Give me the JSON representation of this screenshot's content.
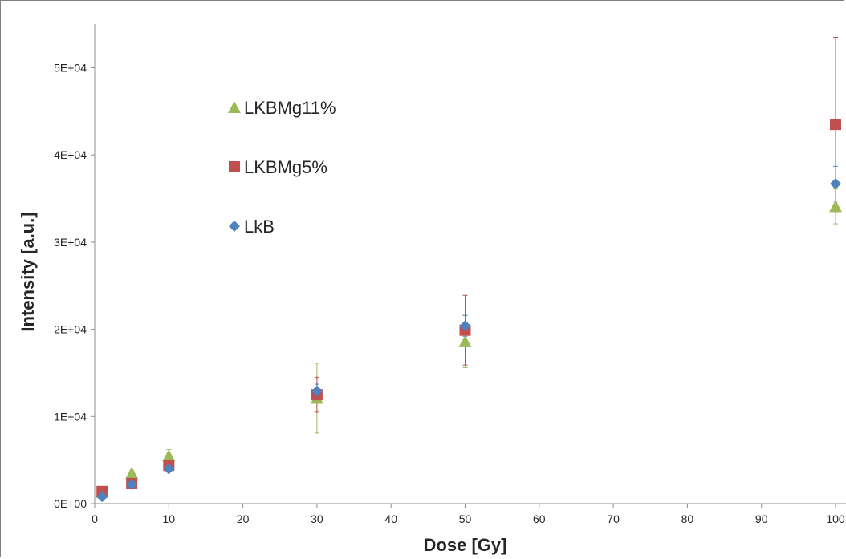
{
  "chart_data": {
    "type": "scatter",
    "xlabel": "Dose [Gy]",
    "ylabel": "Intensity [a.u.]",
    "xlim": [
      0,
      100
    ],
    "ylim": [
      0,
      55000
    ],
    "x_ticks": [
      0,
      10,
      20,
      30,
      40,
      50,
      60,
      70,
      80,
      90,
      100
    ],
    "x_tick_labels": [
      "0",
      "10",
      "20",
      "30",
      "40",
      "50",
      "60",
      "70",
      "80",
      "90",
      "100"
    ],
    "y_ticks": [
      0,
      10000,
      20000,
      30000,
      40000,
      50000
    ],
    "y_tick_labels": [
      "0E+00",
      "1E+04",
      "2E+04",
      "3E+04",
      "4E+04",
      "5E+04"
    ],
    "grid": false,
    "legend_position": "upper-left inside",
    "series": [
      {
        "name": "LKBMg11%",
        "marker": "triangle",
        "color": "#9bbb59",
        "points": [
          {
            "x": 1,
            "y": 1300,
            "err": 400
          },
          {
            "x": 5,
            "y": 3500,
            "err": 300
          },
          {
            "x": 10,
            "y": 5500,
            "err": 700
          },
          {
            "x": 30,
            "y": 12100,
            "err": 4000
          },
          {
            "x": 50,
            "y": 18600,
            "err": 3000
          },
          {
            "x": 100,
            "y": 34100,
            "err": 2000
          }
        ]
      },
      {
        "name": "LKBMg5%",
        "marker": "square",
        "color": "#c0504d",
        "points": [
          {
            "x": 1,
            "y": 1400,
            "err": 400
          },
          {
            "x": 5,
            "y": 2300,
            "err": 300
          },
          {
            "x": 10,
            "y": 4400,
            "err": 500
          },
          {
            "x": 30,
            "y": 12500,
            "err": 2000
          },
          {
            "x": 50,
            "y": 19900,
            "err": 4000
          },
          {
            "x": 100,
            "y": 43500,
            "err": 10000
          }
        ]
      },
      {
        "name": "LkB",
        "marker": "diamond",
        "color": "#4f81bd",
        "points": [
          {
            "x": 1,
            "y": 800,
            "err": 200
          },
          {
            "x": 5,
            "y": 2200,
            "err": 200
          },
          {
            "x": 10,
            "y": 4000,
            "err": 300
          },
          {
            "x": 30,
            "y": 12900,
            "err": 800
          },
          {
            "x": 50,
            "y": 20400,
            "err": 1200
          },
          {
            "x": 100,
            "y": 36700,
            "err": 2000
          }
        ]
      }
    ]
  }
}
